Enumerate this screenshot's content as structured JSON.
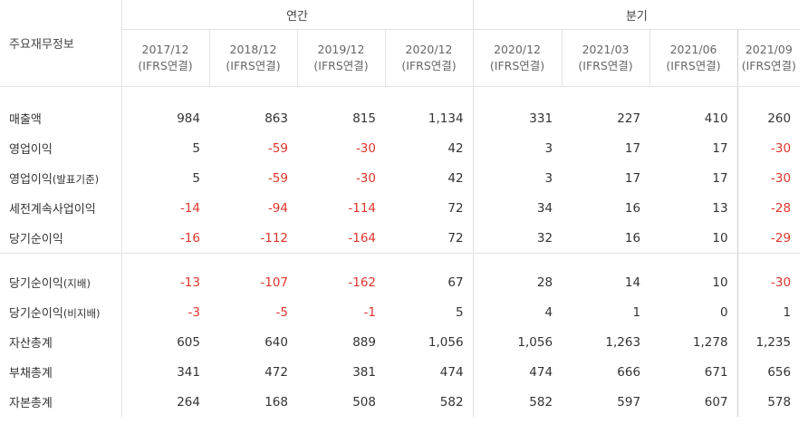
{
  "header": {
    "title": "주요재무정보",
    "annual_label": "연간",
    "quarterly_label": "분기"
  },
  "periods": [
    {
      "period": "2017/12",
      "basis": "(IFRS연결)"
    },
    {
      "period": "2018/12",
      "basis": "(IFRS연결)"
    },
    {
      "period": "2019/12",
      "basis": "(IFRS연결)"
    },
    {
      "period": "2020/12",
      "basis": "(IFRS연결)"
    },
    {
      "period": "2020/12",
      "basis": "(IFRS연결)"
    },
    {
      "period": "2021/03",
      "basis": "(IFRS연결)"
    },
    {
      "period": "2021/06",
      "basis": "(IFRS연결)"
    },
    {
      "period": "2021/09",
      "basis": "(IFRS연결)"
    }
  ],
  "rows": [
    {
      "label": "매출액",
      "sub": "",
      "values": [
        "984",
        "863",
        "815",
        "1,134",
        "331",
        "227",
        "410",
        "260"
      ]
    },
    {
      "label": "영업이익",
      "sub": "",
      "values": [
        "5",
        "-59",
        "-30",
        "42",
        "3",
        "17",
        "17",
        "-30"
      ]
    },
    {
      "label": "영업이익",
      "sub": "(발표기준)",
      "values": [
        "5",
        "-59",
        "-30",
        "42",
        "3",
        "17",
        "17",
        "-30"
      ]
    },
    {
      "label": "세전계속사업이익",
      "sub": "",
      "values": [
        "-14",
        "-94",
        "-114",
        "72",
        "34",
        "16",
        "13",
        "-28"
      ]
    },
    {
      "label": "당기순이익",
      "sub": "",
      "values": [
        "-16",
        "-112",
        "-164",
        "72",
        "32",
        "16",
        "10",
        "-29"
      ]
    },
    {
      "label": "당기순이익",
      "sub": "(지배)",
      "values": [
        "-13",
        "-107",
        "-162",
        "67",
        "28",
        "14",
        "10",
        "-30"
      ]
    },
    {
      "label": "당기순이익",
      "sub": "(비지배)",
      "values": [
        "-3",
        "-5",
        "-1",
        "5",
        "4",
        "1",
        "0",
        "1"
      ]
    },
    {
      "label": "자산총계",
      "sub": "",
      "values": [
        "605",
        "640",
        "889",
        "1,056",
        "1,056",
        "1,263",
        "1,278",
        "1,235"
      ]
    },
    {
      "label": "부채총계",
      "sub": "",
      "values": [
        "341",
        "472",
        "381",
        "474",
        "474",
        "666",
        "671",
        "656"
      ]
    },
    {
      "label": "자본총계",
      "sub": "",
      "values": [
        "264",
        "168",
        "508",
        "582",
        "582",
        "597",
        "607",
        "578"
      ]
    }
  ]
}
